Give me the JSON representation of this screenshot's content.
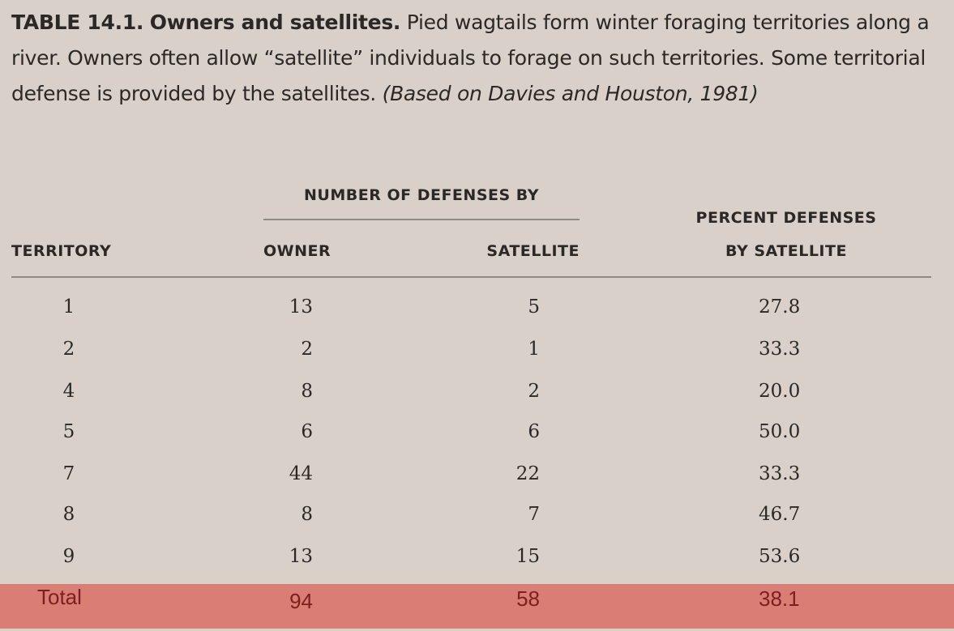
{
  "caption": {
    "label": "TABLE 14.1.",
    "title": "Owners and satellites.",
    "text": "Pied wagtails form winter foraging territories along a river. Owners often allow “satellite” individuals to forage on such territories. Some territorial defense is provided by the satellites.",
    "citation": "(Based on Davies and Houston, 1981)"
  },
  "headers": {
    "group": "NUMBER OF DEFENSES BY",
    "territory": "TERRITORY",
    "owner": "OWNER",
    "satellite": "SATELLITE",
    "percent_line1": "PERCENT DEFENSES",
    "percent_line2": "BY SATELLITE"
  },
  "rows": [
    {
      "territory": "1",
      "owner": "13",
      "satellite": "5",
      "percent": "27.8"
    },
    {
      "territory": "2",
      "owner": "2",
      "satellite": "1",
      "percent": "33.3"
    },
    {
      "territory": "4",
      "owner": "8",
      "satellite": "2",
      "percent": "20.0"
    },
    {
      "territory": "5",
      "owner": "6",
      "satellite": "6",
      "percent": "50.0"
    },
    {
      "territory": "7",
      "owner": "44",
      "satellite": "22",
      "percent": "33.3"
    },
    {
      "territory": "8",
      "owner": "8",
      "satellite": "7",
      "percent": "46.7"
    },
    {
      "territory": "9",
      "owner": "13",
      "satellite": "15",
      "percent": "53.6"
    }
  ],
  "total": {
    "label": "Total",
    "owner": "94",
    "satellite": "58",
    "percent": "38.1"
  },
  "colors": {
    "background": "#d8d0c9",
    "highlight": "#d97d75",
    "highlight_text": "#7d1f1f"
  }
}
